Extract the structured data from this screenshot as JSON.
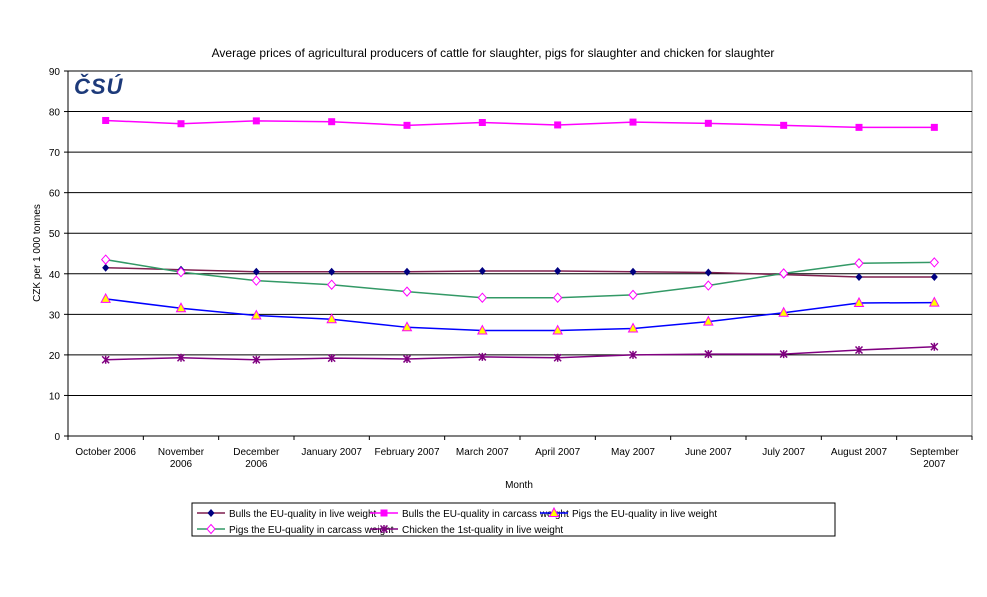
{
  "chart_data": {
    "type": "line",
    "title": "Average prices of agricultural producers of cattle for slaughter, pigs for slaughter and chicken for slaughter",
    "xlabel": "Month",
    "ylabel": "CZK per 1 000 tonnes",
    "ylim": [
      0,
      90
    ],
    "yticks": [
      0,
      10,
      20,
      30,
      40,
      50,
      60,
      70,
      80,
      90
    ],
    "grid": true,
    "legend_placement": "bottom",
    "categories": [
      [
        "October 2006"
      ],
      [
        "November",
        "2006"
      ],
      [
        "December",
        "2006"
      ],
      [
        "January 2007"
      ],
      [
        "February 2007"
      ],
      [
        "March 2007"
      ],
      [
        "April 2007"
      ],
      [
        "May 2007"
      ],
      [
        "June 2007"
      ],
      [
        "July 2007"
      ],
      [
        "August 2007"
      ],
      [
        "September",
        "2007"
      ]
    ],
    "series": [
      {
        "name": "Bulls the EU-quality in live weight",
        "line_color": "#7f1f4f",
        "marker": "diamond-filled",
        "marker_color": "#000080",
        "values": [
          41.5,
          41.0,
          40.5,
          40.5,
          40.5,
          40.7,
          40.7,
          40.5,
          40.3,
          39.8,
          39.2,
          39.2
        ]
      },
      {
        "name": "Bulls the EU-quality in carcass weight",
        "line_color": "#ff00ff",
        "marker": "square",
        "marker_color": "#ff00ff",
        "values": [
          77.8,
          77.0,
          77.7,
          77.5,
          76.6,
          77.3,
          76.7,
          77.4,
          77.1,
          76.6,
          76.1,
          76.1
        ]
      },
      {
        "name": "Pigs the EU-quality in live weight",
        "line_color": "#0000ff",
        "marker": "triangle",
        "marker_color": "#ffff00",
        "values": [
          33.8,
          31.5,
          29.7,
          28.8,
          26.8,
          26.0,
          26.0,
          26.5,
          28.2,
          30.4,
          32.8,
          32.9
        ]
      },
      {
        "name": "Pigs the EU-quality in carcass weight",
        "line_color": "#339966",
        "marker": "diamond-hollow",
        "marker_color": "#ff00ff",
        "values": [
          43.5,
          40.4,
          38.3,
          37.3,
          35.6,
          34.1,
          34.1,
          34.8,
          37.1,
          40.1,
          42.6,
          42.8
        ]
      },
      {
        "name": "Chicken the 1st-quality in live weight",
        "line_color": "#800080",
        "marker": "asterisk",
        "marker_color": "#800080",
        "values": [
          18.8,
          19.3,
          18.8,
          19.2,
          19.0,
          19.5,
          19.3,
          20.0,
          20.2,
          20.2,
          21.2,
          22.0
        ]
      }
    ]
  },
  "logo": {
    "text": "ČSÚ"
  }
}
